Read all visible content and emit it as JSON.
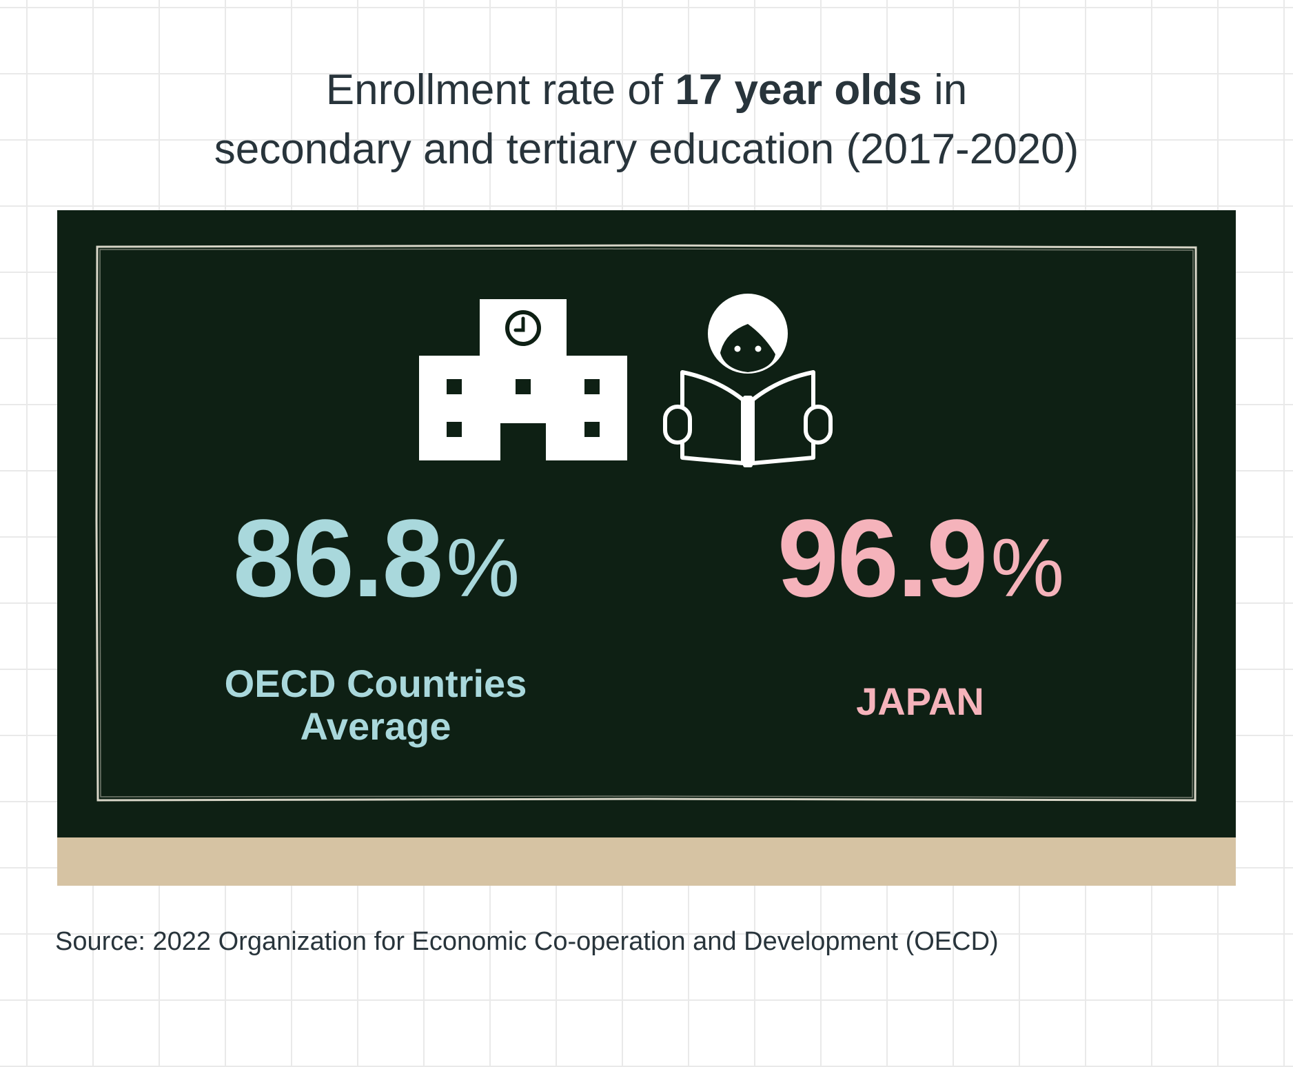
{
  "title": {
    "line1_pre": "Enrollment rate of ",
    "line1_bold": "17 year olds",
    "line1_post": " in",
    "line2": "secondary and tertiary education (2017-2020)"
  },
  "icons": {
    "school": "school-building-icon",
    "reader": "student-reading-icon"
  },
  "stats": {
    "oecd": {
      "value": "86.8",
      "unit": "%",
      "label_line1": "OECD Countries",
      "label_line2": "Average",
      "color": "#a9d8dc"
    },
    "japan": {
      "value": "96.9",
      "unit": "%",
      "label": "JAPAN",
      "color": "#f5b3bb"
    }
  },
  "source": "Source: 2022 Organization for Economic Co-operation and Development (OECD)",
  "colors": {
    "board": "#0e2014",
    "ledge": "#d6c3a3",
    "text": "#28343b"
  }
}
